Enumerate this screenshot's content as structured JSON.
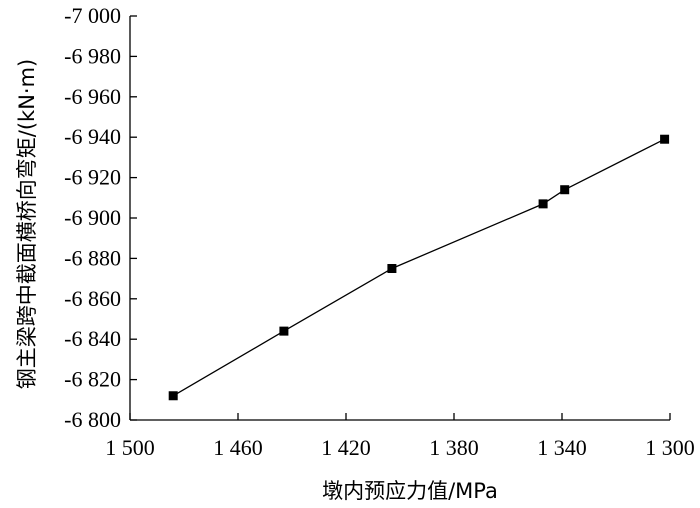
{
  "chart_data": {
    "type": "line",
    "xlabel": "墩内预应力值/MPa",
    "ylabel": "钢主梁跨中截面横桥向弯矩/(kN·m)",
    "xlim": [
      1500,
      1300
    ],
    "ylim": [
      -6800,
      -7000
    ],
    "x_reversed": true,
    "y_reversed": true,
    "x_ticks": [
      1500,
      1460,
      1420,
      1380,
      1340,
      1300
    ],
    "x_tick_labels": [
      "1 500",
      "1 460",
      "1 420",
      "1 380",
      "1 340",
      "1 300"
    ],
    "y_ticks": [
      -7000,
      -6980,
      -6960,
      -6940,
      -6920,
      -6900,
      -6880,
      -6860,
      -6840,
      -6820,
      -6800
    ],
    "y_tick_labels": [
      "-7 000",
      "-6 980",
      "-6 960",
      "-6 940",
      "-6 920",
      "-6 900",
      "-6 880",
      "-6 860",
      "-6 840",
      "-6 820",
      "-6 800"
    ],
    "grid": false,
    "legend": "none",
    "series": [
      {
        "marker": "square",
        "color": "#000000",
        "x": [
          1484,
          1443,
          1403,
          1347,
          1339,
          1302
        ],
        "y": [
          -6812,
          -6844,
          -6875,
          -6907,
          -6914,
          -6939
        ]
      }
    ]
  }
}
